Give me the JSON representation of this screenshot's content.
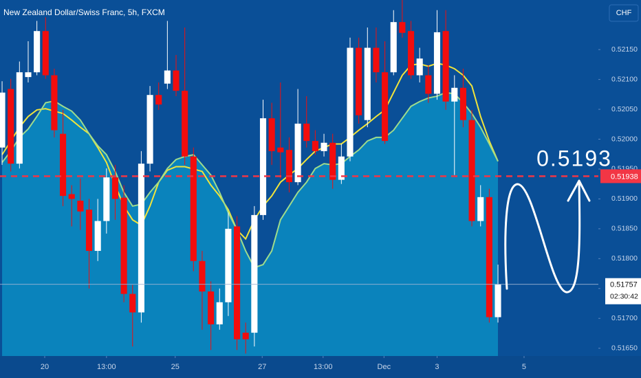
{
  "chart_data": {
    "type": "candlestick",
    "title": "New Zealand Dollar/Swiss Franc, 5h, FXCM",
    "currency": "CHF",
    "up_color": "#ffffff",
    "down_color": "#f20d0d",
    "open": [
      0.51986,
      0.52084,
      0.51959,
      0.52104,
      0.52112,
      0.52181,
      0.52107,
      0.52009,
      0.51908,
      0.51897,
      0.51882,
      0.51813,
      0.51863,
      0.51936,
      0.51902,
      0.51741,
      0.5171,
      0.51959,
      0.52074,
      0.52093,
      0.52115,
      0.52081,
      0.51971,
      0.51796,
      0.51745,
      0.5169,
      0.51727,
      0.51854,
      0.51676,
      0.51676,
      0.51873,
      0.52035,
      0.51986,
      0.51982,
      0.51928,
      0.52026,
      0.51997,
      0.5198,
      0.51994,
      0.51932,
      0.51971,
      0.52153,
      0.52032,
      0.52153,
      0.52112,
      0.52112,
      0.52196,
      0.52181,
      0.52107,
      0.52107,
      0.52076,
      0.52181,
      0.52063,
      0.52086,
      0.52032,
      0.51863,
      0.51903,
      0.51702
    ],
    "high": [
      0.52097,
      0.52101,
      0.5213,
      0.52164,
      0.52198,
      0.52204,
      0.52118,
      0.52049,
      0.51923,
      0.51934,
      0.519,
      0.519,
      0.51951,
      0.51957,
      0.51923,
      0.51756,
      0.5198,
      0.52089,
      0.52095,
      0.52198,
      0.52141,
      0.52187,
      0.51986,
      0.51813,
      0.51762,
      0.5175,
      0.51877,
      0.51871,
      0.51693,
      0.51888,
      0.52066,
      0.52061,
      0.52095,
      0.52003,
      0.52084,
      0.52072,
      0.52015,
      0.52009,
      0.52009,
      0.51992,
      0.5217,
      0.5217,
      0.52187,
      0.52187,
      0.52164,
      0.52216,
      0.52233,
      0.52198,
      0.52153,
      0.52124,
      0.52216,
      0.52216,
      0.52107,
      0.52118,
      0.52049,
      0.51923,
      0.51917,
      0.5179
    ],
    "low": [
      0.51957,
      0.51946,
      0.51951,
      0.52095,
      0.52107,
      0.52101,
      0.52003,
      0.51888,
      0.51854,
      0.51848,
      0.5175,
      0.51796,
      0.51842,
      0.51865,
      0.51727,
      0.51653,
      0.51693,
      0.51946,
      0.52049,
      0.52084,
      0.52072,
      0.51957,
      0.51779,
      0.51681,
      0.51647,
      0.51681,
      0.51704,
      0.51647,
      0.51641,
      0.51653,
      0.51865,
      0.51957,
      0.51934,
      0.51911,
      0.51923,
      0.51986,
      0.51974,
      0.51971,
      0.51917,
      0.51925,
      0.51963,
      0.52026,
      0.5202,
      0.52095,
      0.51992,
      0.52107,
      0.5217,
      0.52101,
      0.52095,
      0.52061,
      0.52066,
      0.52049,
      0.5194,
      0.5202,
      0.51854,
      0.51854,
      0.51693,
      0.51693
    ],
    "close": [
      0.52078,
      0.51959,
      0.52112,
      0.52112,
      0.52181,
      0.52107,
      0.52015,
      0.51905,
      0.519,
      0.51879,
      0.51813,
      0.51863,
      0.51936,
      0.519,
      0.51741,
      0.5171,
      0.51959,
      0.52074,
      0.52058,
      0.52115,
      0.52081,
      0.51971,
      0.51796,
      0.51745,
      0.5169,
      0.51727,
      0.5185,
      0.51665,
      0.51665,
      0.51873,
      0.52035,
      0.5198,
      0.51978,
      0.51928,
      0.52026,
      0.51997,
      0.5198,
      0.51994,
      0.51932,
      0.51971,
      0.52153,
      0.5204,
      0.52153,
      0.52112,
      0.51997,
      0.52196,
      0.52178,
      0.52107,
      0.52135,
      0.52076,
      0.52179,
      0.52063,
      0.52086,
      0.52032,
      0.51863,
      0.51903,
      0.51702,
      0.51757
    ],
    "moving_averages": [
      {
        "color": "#f2e53a",
        "values": [
          0.51974,
          0.51997,
          0.5202,
          0.52038,
          0.52049,
          0.52051,
          0.52047,
          0.52043,
          0.52032,
          0.5202,
          0.52009,
          0.51986,
          0.51961,
          0.51923,
          0.51888,
          0.51865,
          0.51856,
          0.51888,
          0.51928,
          0.51948,
          0.51954,
          0.51954,
          0.5195,
          0.51946,
          0.51923,
          0.51905,
          0.51882,
          0.51848,
          0.51833,
          0.51865,
          0.51888,
          0.51905,
          0.51928,
          0.5194,
          0.51951,
          0.51966,
          0.5198,
          0.51986,
          0.51992,
          0.51992,
          0.52003,
          0.52015,
          0.52026,
          0.52038,
          0.52049,
          0.52078,
          0.52107,
          0.52124,
          0.52126,
          0.52122,
          0.52127,
          0.52124,
          0.52118,
          0.52107,
          0.52089,
          0.52038,
          0.51997,
          0.51963
        ]
      },
      {
        "color": "#9fdc8c",
        "fill": "#0b86be",
        "values": [
          0.51961,
          0.5198,
          0.52003,
          0.52017,
          0.52038,
          0.52061,
          0.52064,
          0.52055,
          0.52047,
          0.52032,
          0.52009,
          0.51989,
          0.51974,
          0.51946,
          0.51911,
          0.51888,
          0.51891,
          0.51911,
          0.51928,
          0.51951,
          0.51966,
          0.51971,
          0.51974,
          0.51957,
          0.5194,
          0.51911,
          0.51877,
          0.51848,
          0.51813,
          0.51785,
          0.5179,
          0.51813,
          0.51865,
          0.51888,
          0.51911,
          0.51928,
          0.51951,
          0.51959,
          0.51957,
          0.51959,
          0.51971,
          0.51982,
          0.51997,
          0.52003,
          0.52003,
          0.52015,
          0.52035,
          0.52055,
          0.52063,
          0.52069,
          0.52072,
          0.52078,
          0.52076,
          0.52061,
          0.52043,
          0.5202,
          0.51992,
          0.51963
        ]
      }
    ],
    "price_lines": [
      {
        "value": 0.51938,
        "color": "#f23645"
      },
      {
        "value": 0.51757,
        "color": "#ffffff",
        "countdown": "02:30:42"
      }
    ],
    "annotation": "0.5193",
    "xlim": [
      -0.24,
      68.54
    ],
    "xticks": [
      {
        "value": 4.9,
        "label": "20"
      },
      {
        "value": 12,
        "label": "13:00"
      },
      {
        "value": 19.9,
        "label": "25"
      },
      {
        "value": 29.9,
        "label": "27"
      },
      {
        "value": 36.9,
        "label": "13:00"
      },
      {
        "value": 43.9,
        "label": "Dec"
      },
      {
        "value": 50,
        "label": "3"
      },
      {
        "value": 60,
        "label": "5"
      }
    ],
    "ylim": [
      0.51637,
      0.52233
    ],
    "yticks": [
      {
        "value": 0.5215,
        "label": "0.52150"
      },
      {
        "value": 0.521,
        "label": "0.52100"
      },
      {
        "value": 0.5205,
        "label": "0.52050"
      },
      {
        "value": 0.52,
        "label": "0.52000"
      },
      {
        "value": 0.5195,
        "label": "0.51950"
      },
      {
        "value": 0.519,
        "label": "0.51900"
      },
      {
        "value": 0.5185,
        "label": "0.51850"
      },
      {
        "value": 0.518,
        "label": "0.51800"
      },
      {
        "value": 0.5175,
        "label": "0.51750"
      },
      {
        "value": 0.517,
        "label": "0.51700"
      },
      {
        "value": 0.5165,
        "label": "0.51650"
      }
    ],
    "grid": false
  }
}
